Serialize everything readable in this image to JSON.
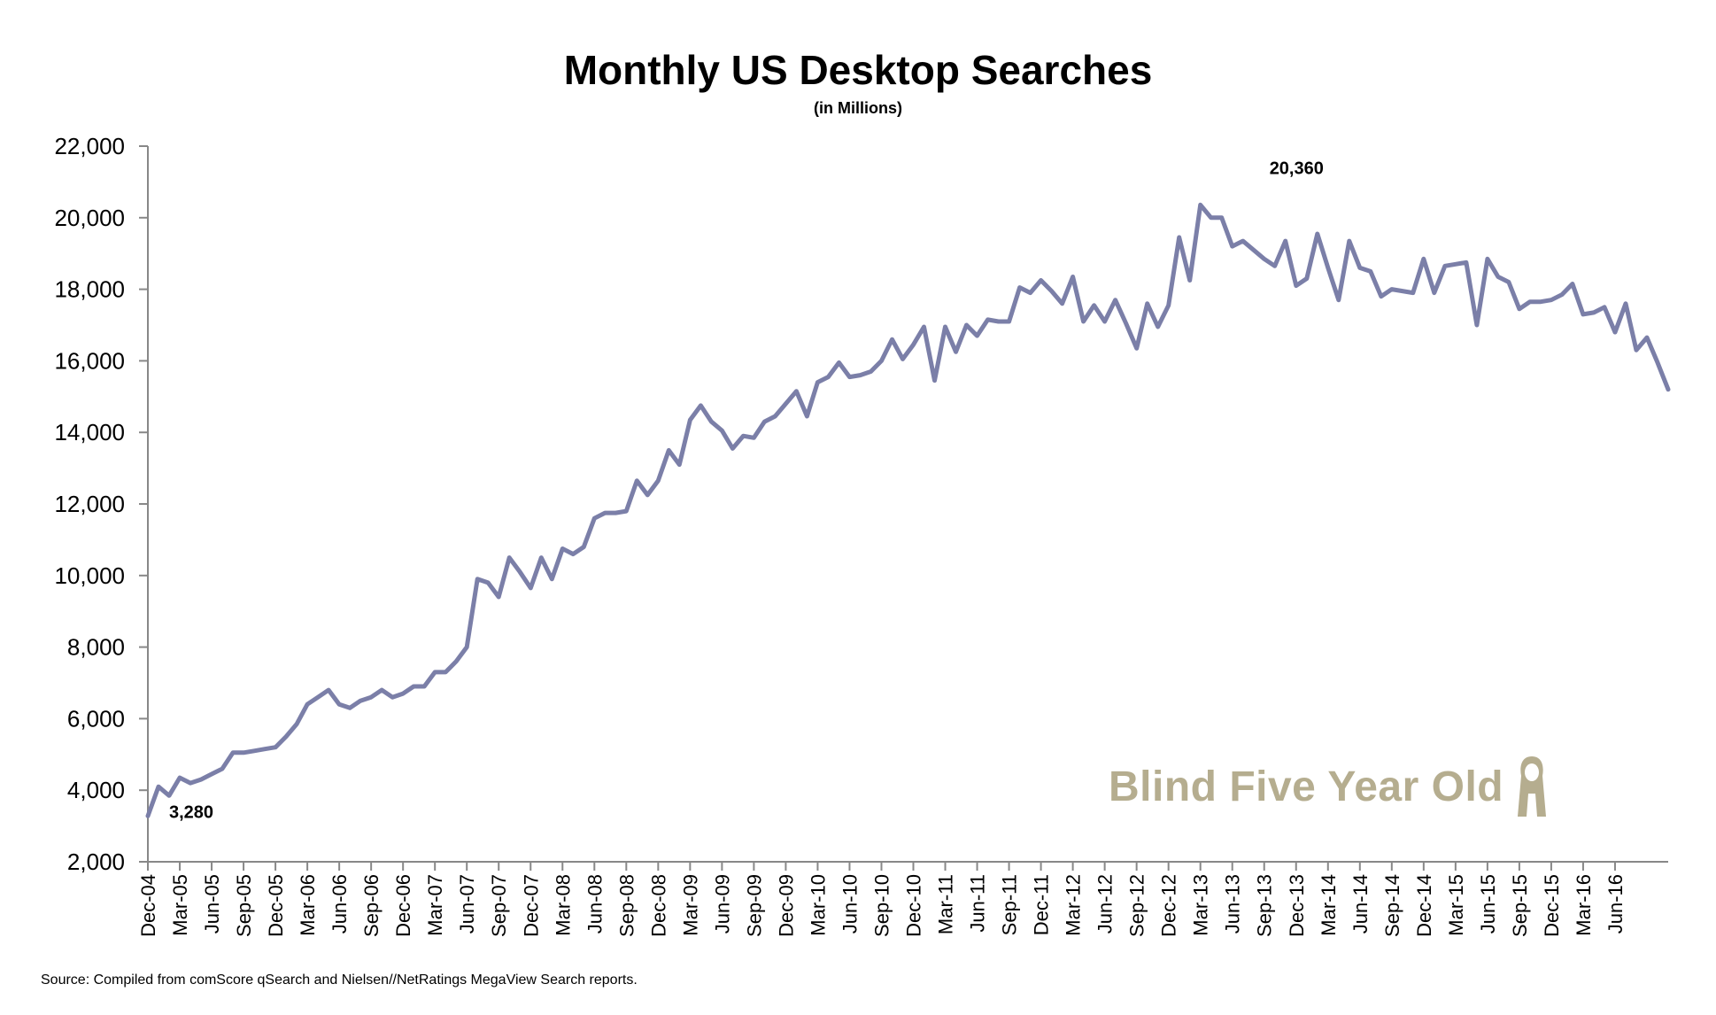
{
  "chart_data": {
    "type": "line",
    "title": "Monthly US Desktop Searches",
    "subtitle": "(in Millions)",
    "source": "Source: Compiled from comScore qSearch and Nielsen//NetRatings MegaView Search reports.",
    "ylim": [
      2000,
      22000
    ],
    "yticks": [
      "22,000",
      "20,000",
      "18,000",
      "16,000",
      "14,000",
      "12,000",
      "10,000",
      "8,000",
      "6,000",
      "4,000",
      "2,000"
    ],
    "ytick_values": [
      22000,
      20000,
      18000,
      16000,
      14000,
      12000,
      10000,
      8000,
      6000,
      4000,
      2000
    ],
    "x_tick_labels": [
      "Dec-04",
      "Mar-05",
      "Jun-05",
      "Sep-05",
      "Dec-05",
      "Mar-06",
      "Jun-06",
      "Sep-06",
      "Dec-06",
      "Mar-07",
      "Jun-07",
      "Sep-07",
      "Dec-07",
      "Mar-08",
      "Jun-08",
      "Sep-08",
      "Dec-08",
      "Mar-09",
      "Jun-09",
      "Sep-09",
      "Dec-09",
      "Mar-10",
      "Jun-10",
      "Sep-10",
      "Dec-10",
      "Mar-11",
      "Jun-11",
      "Sep-11",
      "Dec-11",
      "Mar-12",
      "Jun-12",
      "Sep-12",
      "Dec-12",
      "Mar-13",
      "Jun-13",
      "Sep-13",
      "Dec-13",
      "Mar-14",
      "Jun-14",
      "Sep-14",
      "Dec-14",
      "Mar-15",
      "Jun-15",
      "Sep-15",
      "Dec-15",
      "Mar-16",
      "Jun-16"
    ],
    "x_start": "Dec-04",
    "x_end": "Jul-16",
    "grid": false,
    "line_color": "#7b7fa8",
    "series": [
      {
        "values": [
          3280,
          4100,
          3850,
          4350,
          4200,
          4300,
          4450,
          4600,
          5050,
          5050,
          5100,
          5150,
          5200,
          5500,
          5850,
          6400,
          6600,
          6800,
          6400,
          6300,
          6500,
          6600,
          6800,
          6600,
          6700,
          6900,
          6900,
          7300,
          7300,
          7600,
          8000,
          9900,
          9800,
          9400,
          10500,
          10100,
          9650,
          10500,
          9900,
          10750,
          10600,
          10800,
          11600,
          11750,
          11750,
          11800,
          12650,
          12250,
          12650,
          13500,
          13100,
          14350,
          14750,
          14300,
          14050,
          13550,
          13900,
          13850,
          14300,
          14450,
          14800,
          15150,
          14450,
          15400,
          15550,
          15950,
          15550,
          15600,
          15700,
          16000,
          16600,
          16050,
          16450,
          16950,
          15450,
          16950,
          16250,
          17000,
          16700,
          17150,
          17100,
          17100,
          18050,
          17900,
          18250,
          17950,
          17600,
          18350,
          17100,
          17550,
          17100,
          17700,
          17050,
          16350,
          17600,
          16950,
          17550,
          19450,
          18250,
          20360,
          20000,
          20000,
          19200,
          19350,
          19100,
          18850,
          18650,
          19350,
          18100,
          18300,
          19550,
          18600,
          17700,
          19350,
          18600,
          18500,
          17800,
          18000,
          17950,
          17900,
          18850,
          17900,
          18650,
          18700,
          18750,
          17000,
          18850,
          18350,
          18200,
          17450,
          17650,
          17650,
          17700,
          17850,
          18150,
          17300,
          17350,
          17500,
          16800,
          17600,
          16300,
          16650,
          15950,
          15200
        ]
      }
    ],
    "annotations": [
      {
        "text": "3,280",
        "month_index": 0,
        "value": 3280
      },
      {
        "text": "20,360",
        "month_index": 99,
        "value": 20360
      }
    ]
  },
  "watermark": {
    "text": "Blind Five Year Old",
    "icon": "figure-icon",
    "color": "#b5ad8f"
  }
}
